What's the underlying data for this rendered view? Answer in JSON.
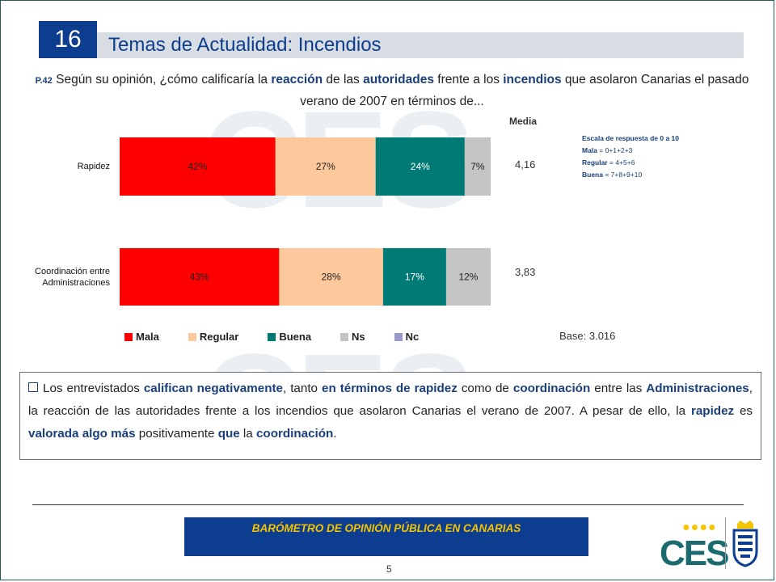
{
  "header": {
    "number": "16",
    "title": "Temas de Actualidad: Incendios"
  },
  "question": {
    "number": "P.42",
    "parts": [
      {
        "t": "Según su opinión, ¿cómo calificaría la ",
        "b": false
      },
      {
        "t": "reacción",
        "b": true
      },
      {
        "t": " de las ",
        "b": false
      },
      {
        "t": "autoridades",
        "b": true
      },
      {
        "t": " frente a los ",
        "b": false
      },
      {
        "t": "incendios",
        "b": true
      },
      {
        "t": " que asolaron Canarias el pasado verano de 2007 en términos de...",
        "b": false
      }
    ]
  },
  "media": {
    "heading": "Media",
    "values": [
      "4,16",
      "3,83"
    ]
  },
  "scale": {
    "heading": "Escala de respuesta de 0 a 10",
    "lines": [
      {
        "label": "Mala",
        "value": " = 0+1+2+3"
      },
      {
        "label": "Regular",
        "value": " = 4+5+6"
      },
      {
        "label": "Buena",
        "value": " = 7+8+9+10"
      }
    ]
  },
  "base": "Base: 3.016",
  "chart_data": {
    "type": "bar",
    "orientation": "horizontal",
    "stacked": true,
    "categories": [
      "Rapidez",
      "Coordinación entre Administraciones"
    ],
    "category_lines": [
      [
        "Rapidez"
      ],
      [
        "Coordinación entre",
        "Administraciones"
      ]
    ],
    "series": [
      {
        "name": "Mala",
        "color": "#ff0000",
        "values": [
          42,
          43
        ],
        "labels": [
          "42%",
          "43%"
        ]
      },
      {
        "name": "Regular",
        "color": "#fdc89c",
        "values": [
          27,
          28
        ],
        "labels": [
          "27%",
          "28%"
        ]
      },
      {
        "name": "Buena",
        "color": "#007a75",
        "values": [
          24,
          17
        ],
        "labels": [
          "24%",
          "17%"
        ]
      },
      {
        "name": "Ns",
        "color": "#c4c4c4",
        "values": [
          7,
          12
        ],
        "labels": [
          "7%",
          "12%"
        ]
      },
      {
        "name": "Nc",
        "color": "#9999cc",
        "values": [
          0,
          0
        ],
        "labels": [
          "",
          ""
        ]
      }
    ],
    "xlim": [
      0,
      100
    ],
    "legend_position": "bottom"
  },
  "summary": {
    "parts": [
      {
        "t": "Los entrevistados ",
        "b": false
      },
      {
        "t": "califican negativamente",
        "b": true
      },
      {
        "t": ", tanto ",
        "b": false
      },
      {
        "t": "en términos de rapidez",
        "b": true
      },
      {
        "t": " como de ",
        "b": false
      },
      {
        "t": "coordinación",
        "b": true
      },
      {
        "t": " entre las ",
        "b": false
      },
      {
        "t": "Administraciones",
        "b": true
      },
      {
        "t": ", la reacción de las autoridades frente a los incendios que asolaron Canarias el verano de 2007. A pesar de ello, la ",
        "b": false
      },
      {
        "t": "rapidez",
        "b": true
      },
      {
        "t": " es ",
        "b": false
      },
      {
        "t": "valorada algo más",
        "b": true
      },
      {
        "t": " positivamente ",
        "b": false
      },
      {
        "t": "que",
        "b": true
      },
      {
        "t": " la ",
        "b": false
      },
      {
        "t": "coordinación",
        "b": true
      },
      {
        "t": ".",
        "b": false
      }
    ]
  },
  "footer": {
    "banner": "BARÓMETRO DE OPINIÓN PÚBLICA EN CANARIAS",
    "page": "5",
    "logo": "CES"
  },
  "watermark": "CES",
  "colors": {
    "brand_blue": "#0d3d8e",
    "footer_text": "#f5c400",
    "logo_teal": "#1a6a70"
  }
}
